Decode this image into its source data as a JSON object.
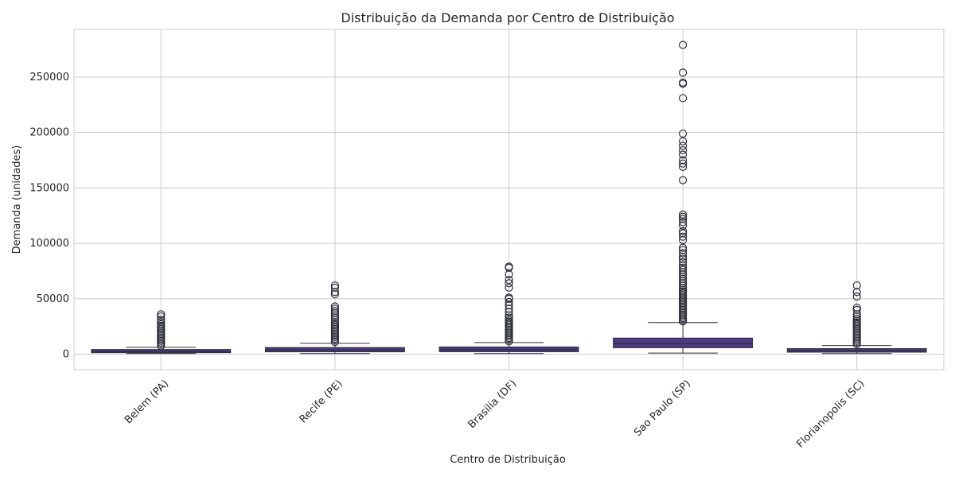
{
  "chart_data": {
    "type": "box",
    "title": "Distribuição da Demanda por Centro de Distribuição",
    "xlabel": "Centro de Distribuição",
    "ylabel": "Demanda (unidades)",
    "ylim": [
      -14000,
      293000
    ],
    "yticks": [
      0,
      50000,
      100000,
      150000,
      200000,
      250000
    ],
    "grid": true,
    "box_color": "#4b3a84",
    "edge_color": "#2e2e3a",
    "categories": [
      "Belem (PA)",
      "Recife (PE)",
      "Brasilia (DF)",
      "Sao Paulo (SP)",
      "Florianopolis (SC)"
    ],
    "boxes": [
      {
        "whislo": 500,
        "q1": 1300,
        "median": 2400,
        "q3": 4200,
        "whishi": 6200,
        "fliers": [
          7500,
          9000,
          10500,
          12000,
          13500,
          15000,
          16500,
          18000,
          19500,
          21000,
          22500,
          24000,
          25500,
          27000,
          29000,
          31000,
          34000,
          36000
        ]
      },
      {
        "whislo": 500,
        "q1": 2100,
        "median": 3800,
        "q3": 6000,
        "whishi": 9800,
        "fliers": [
          11000,
          12500,
          14000,
          15500,
          17000,
          18500,
          20000,
          21500,
          23000,
          24500,
          26000,
          27500,
          29000,
          31000,
          33000,
          35000,
          37000,
          39000,
          41000,
          43000,
          54000,
          56000,
          60000,
          62000
        ]
      },
      {
        "whislo": 500,
        "q1": 2200,
        "median": 4000,
        "q3": 6500,
        "whishi": 10500,
        "fliers": [
          11500,
          13000,
          14500,
          16000,
          17500,
          19000,
          20500,
          22000,
          23500,
          25000,
          26500,
          28000,
          29500,
          31000,
          33000,
          35000,
          38000,
          41000,
          44000,
          47000,
          50000,
          51000,
          60000,
          64000,
          67000,
          72000,
          78000,
          79000
        ]
      },
      {
        "whislo": 1000,
        "q1": 5800,
        "median": 9500,
        "q3": 14500,
        "whishi": 28500,
        "fliers": [
          29500,
          31000,
          32500,
          34000,
          35500,
          37000,
          38500,
          40000,
          41500,
          43000,
          44500,
          46000,
          47500,
          49000,
          50500,
          52000,
          53500,
          55000,
          56500,
          58000,
          60000,
          62000,
          64000,
          66000,
          68000,
          70000,
          72000,
          74000,
          76000,
          78000,
          80000,
          83000,
          86000,
          88000,
          91000,
          94000,
          96000,
          103000,
          106000,
          109000,
          111000,
          116000,
          119000,
          122000,
          124000,
          126000,
          157000,
          169000,
          172000,
          175000,
          180000,
          184000,
          188000,
          192000,
          199000,
          231000,
          244000,
          245000,
          254000,
          279000
        ]
      },
      {
        "whislo": 500,
        "q1": 1800,
        "median": 3100,
        "q3": 5000,
        "whishi": 7800,
        "fliers": [
          9000,
          10500,
          12000,
          13500,
          15000,
          16500,
          18000,
          19500,
          21000,
          22500,
          24000,
          25500,
          27000,
          28500,
          30000,
          32000,
          34000,
          36000,
          40000,
          42000,
          52000,
          56000,
          62000
        ]
      }
    ]
  }
}
